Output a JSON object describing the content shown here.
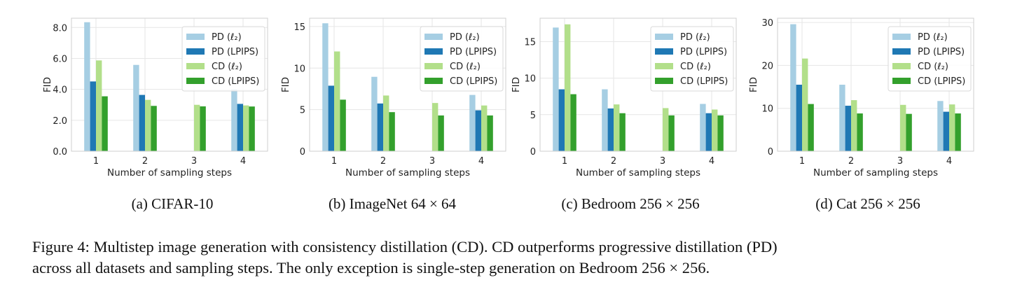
{
  "colors": {
    "pd_l2": "#a6cee3",
    "pd_lpips": "#1f78b4",
    "cd_l2": "#b2df8a",
    "cd_lpips": "#33a02c",
    "grid": "#e6e6e6",
    "frame": "#cfcfcf"
  },
  "chart_data": [
    {
      "type": "bar",
      "xlabel": "Number of sampling steps",
      "ylabel": "FID",
      "categories": [
        "1",
        "2",
        "3",
        "4"
      ],
      "ylim": [
        0,
        8.6
      ],
      "yticks": [
        "0.0",
        "2.0",
        "4.0",
        "6.0",
        "8.0"
      ],
      "ytick_values": [
        0,
        2,
        4,
        6,
        8
      ],
      "legend_position": "top-right",
      "series": [
        {
          "name": "PD (ℓ₂)",
          "values": [
            8.34,
            5.58,
            null,
            4.0
          ]
        },
        {
          "name": "PD (LPIPS)",
          "values": [
            4.51,
            3.64,
            null,
            3.06
          ]
        },
        {
          "name": "CD (ℓ₂)",
          "values": [
            5.87,
            3.32,
            3.0,
            2.96
          ]
        },
        {
          "name": "CD (LPIPS)",
          "values": [
            3.55,
            2.93,
            2.9,
            2.89
          ]
        }
      ]
    },
    {
      "type": "bar",
      "xlabel": "Number of sampling steps",
      "ylabel": "FID",
      "categories": [
        "1",
        "2",
        "3",
        "4"
      ],
      "ylim": [
        0,
        16
      ],
      "yticks": [
        "0",
        "5",
        "10",
        "15"
      ],
      "ytick_values": [
        0,
        5,
        10,
        15
      ],
      "legend_position": "top-right",
      "series": [
        {
          "name": "PD (ℓ₂)",
          "values": [
            15.39,
            8.95,
            null,
            6.77
          ]
        },
        {
          "name": "PD (LPIPS)",
          "values": [
            7.88,
            5.74,
            null,
            4.92
          ]
        },
        {
          "name": "CD (ℓ₂)",
          "values": [
            12.0,
            6.7,
            5.8,
            5.5
          ]
        },
        {
          "name": "CD (LPIPS)",
          "values": [
            6.2,
            4.7,
            4.3,
            4.3
          ]
        }
      ]
    },
    {
      "type": "bar",
      "xlabel": "Number of sampling steps",
      "ylabel": "FID",
      "categories": [
        "1",
        "2",
        "3",
        "4"
      ],
      "ylim": [
        0,
        18.2
      ],
      "yticks": [
        "0",
        "5",
        "10",
        "15"
      ],
      "ytick_values": [
        0,
        5,
        10,
        15
      ],
      "legend_position": "top-right",
      "series": [
        {
          "name": "PD (ℓ₂)",
          "values": [
            16.92,
            8.47,
            null,
            6.47
          ]
        },
        {
          "name": "PD (LPIPS)",
          "values": [
            8.47,
            5.85,
            null,
            5.2
          ]
        },
        {
          "name": "CD (ℓ₂)",
          "values": [
            17.36,
            6.4,
            5.9,
            5.7
          ]
        },
        {
          "name": "CD (LPIPS)",
          "values": [
            7.8,
            5.2,
            4.9,
            4.9
          ]
        }
      ]
    },
    {
      "type": "bar",
      "xlabel": "Number of sampling steps",
      "ylabel": "FID",
      "categories": [
        "1",
        "2",
        "3",
        "4"
      ],
      "ylim": [
        0,
        31
      ],
      "yticks": [
        "0",
        "10",
        "20",
        "30"
      ],
      "ytick_values": [
        0,
        10,
        20,
        30
      ],
      "legend_position": "top-right",
      "series": [
        {
          "name": "PD (ℓ₂)",
          "values": [
            29.6,
            15.5,
            null,
            11.7
          ]
        },
        {
          "name": "PD (LPIPS)",
          "values": [
            15.5,
            10.6,
            null,
            9.2
          ]
        },
        {
          "name": "CD (ℓ₂)",
          "values": [
            21.6,
            11.9,
            10.8,
            10.9
          ]
        },
        {
          "name": "CD (LPIPS)",
          "values": [
            11.0,
            8.8,
            8.7,
            8.8
          ]
        }
      ]
    }
  ],
  "subcaptions": [
    "(a) CIFAR-10",
    "(b) ImageNet 64 × 64",
    "(c) Bedroom 256 × 256",
    "(d) Cat 256 × 256"
  ],
  "caption": {
    "line1": "Figure 4: Multistep image generation with consistency distillation (CD). CD outperforms progressive distillation (PD)",
    "line2": "across all datasets and sampling steps. The only exception is single-step generation on Bedroom 256 × 256."
  }
}
